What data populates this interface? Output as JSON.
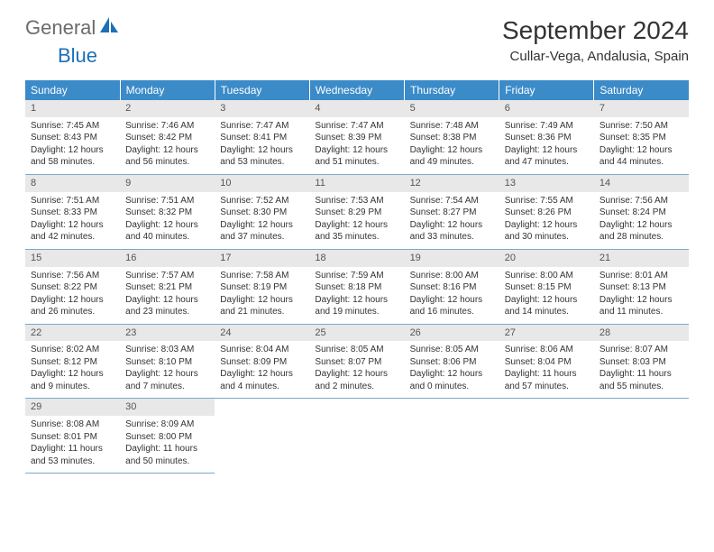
{
  "logo": {
    "text1": "General",
    "text2": "Blue"
  },
  "title": "September 2024",
  "location": "Cullar-Vega, Andalusia, Spain",
  "header_bg": "#3b8bc9",
  "daynum_bg": "#e8e8e8",
  "border_color": "#7aa9cc",
  "weekdays": [
    "Sunday",
    "Monday",
    "Tuesday",
    "Wednesday",
    "Thursday",
    "Friday",
    "Saturday"
  ],
  "weeks": [
    {
      "nums": [
        "1",
        "2",
        "3",
        "4",
        "5",
        "6",
        "7"
      ],
      "cells": [
        {
          "sunrise": "7:45 AM",
          "sunset": "8:43 PM",
          "dl": "12 hours and 58 minutes."
        },
        {
          "sunrise": "7:46 AM",
          "sunset": "8:42 PM",
          "dl": "12 hours and 56 minutes."
        },
        {
          "sunrise": "7:47 AM",
          "sunset": "8:41 PM",
          "dl": "12 hours and 53 minutes."
        },
        {
          "sunrise": "7:47 AM",
          "sunset": "8:39 PM",
          "dl": "12 hours and 51 minutes."
        },
        {
          "sunrise": "7:48 AM",
          "sunset": "8:38 PM",
          "dl": "12 hours and 49 minutes."
        },
        {
          "sunrise": "7:49 AM",
          "sunset": "8:36 PM",
          "dl": "12 hours and 47 minutes."
        },
        {
          "sunrise": "7:50 AM",
          "sunset": "8:35 PM",
          "dl": "12 hours and 44 minutes."
        }
      ]
    },
    {
      "nums": [
        "8",
        "9",
        "10",
        "11",
        "12",
        "13",
        "14"
      ],
      "cells": [
        {
          "sunrise": "7:51 AM",
          "sunset": "8:33 PM",
          "dl": "12 hours and 42 minutes."
        },
        {
          "sunrise": "7:51 AM",
          "sunset": "8:32 PM",
          "dl": "12 hours and 40 minutes."
        },
        {
          "sunrise": "7:52 AM",
          "sunset": "8:30 PM",
          "dl": "12 hours and 37 minutes."
        },
        {
          "sunrise": "7:53 AM",
          "sunset": "8:29 PM",
          "dl": "12 hours and 35 minutes."
        },
        {
          "sunrise": "7:54 AM",
          "sunset": "8:27 PM",
          "dl": "12 hours and 33 minutes."
        },
        {
          "sunrise": "7:55 AM",
          "sunset": "8:26 PM",
          "dl": "12 hours and 30 minutes."
        },
        {
          "sunrise": "7:56 AM",
          "sunset": "8:24 PM",
          "dl": "12 hours and 28 minutes."
        }
      ]
    },
    {
      "nums": [
        "15",
        "16",
        "17",
        "18",
        "19",
        "20",
        "21"
      ],
      "cells": [
        {
          "sunrise": "7:56 AM",
          "sunset": "8:22 PM",
          "dl": "12 hours and 26 minutes."
        },
        {
          "sunrise": "7:57 AM",
          "sunset": "8:21 PM",
          "dl": "12 hours and 23 minutes."
        },
        {
          "sunrise": "7:58 AM",
          "sunset": "8:19 PM",
          "dl": "12 hours and 21 minutes."
        },
        {
          "sunrise": "7:59 AM",
          "sunset": "8:18 PM",
          "dl": "12 hours and 19 minutes."
        },
        {
          "sunrise": "8:00 AM",
          "sunset": "8:16 PM",
          "dl": "12 hours and 16 minutes."
        },
        {
          "sunrise": "8:00 AM",
          "sunset": "8:15 PM",
          "dl": "12 hours and 14 minutes."
        },
        {
          "sunrise": "8:01 AM",
          "sunset": "8:13 PM",
          "dl": "12 hours and 11 minutes."
        }
      ]
    },
    {
      "nums": [
        "22",
        "23",
        "24",
        "25",
        "26",
        "27",
        "28"
      ],
      "cells": [
        {
          "sunrise": "8:02 AM",
          "sunset": "8:12 PM",
          "dl": "12 hours and 9 minutes."
        },
        {
          "sunrise": "8:03 AM",
          "sunset": "8:10 PM",
          "dl": "12 hours and 7 minutes."
        },
        {
          "sunrise": "8:04 AM",
          "sunset": "8:09 PM",
          "dl": "12 hours and 4 minutes."
        },
        {
          "sunrise": "8:05 AM",
          "sunset": "8:07 PM",
          "dl": "12 hours and 2 minutes."
        },
        {
          "sunrise": "8:05 AM",
          "sunset": "8:06 PM",
          "dl": "12 hours and 0 minutes."
        },
        {
          "sunrise": "8:06 AM",
          "sunset": "8:04 PM",
          "dl": "11 hours and 57 minutes."
        },
        {
          "sunrise": "8:07 AM",
          "sunset": "8:03 PM",
          "dl": "11 hours and 55 minutes."
        }
      ]
    },
    {
      "nums": [
        "29",
        "30",
        "",
        "",
        "",
        "",
        ""
      ],
      "cells": [
        {
          "sunrise": "8:08 AM",
          "sunset": "8:01 PM",
          "dl": "11 hours and 53 minutes."
        },
        {
          "sunrise": "8:09 AM",
          "sunset": "8:00 PM",
          "dl": "11 hours and 50 minutes."
        },
        null,
        null,
        null,
        null,
        null
      ]
    }
  ]
}
